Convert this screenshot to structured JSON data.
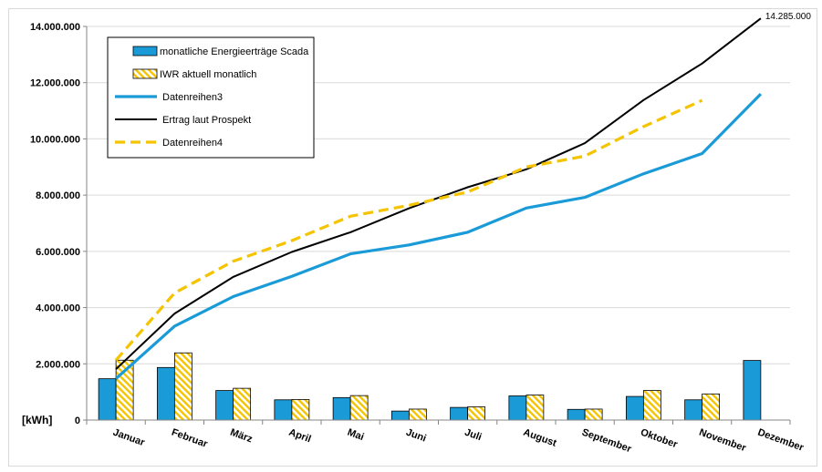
{
  "chart_data": {
    "type": "bar",
    "title": "",
    "unit_label": "[kWh]",
    "categories": [
      "Januar",
      "Februar",
      "März",
      "April",
      "Mai",
      "Juni",
      "Juli",
      "August",
      "September",
      "Oktober",
      "November",
      "Dezember"
    ],
    "ylim": [
      0,
      14000000
    ],
    "yticks": [
      0,
      2000000,
      4000000,
      6000000,
      8000000,
      10000000,
      12000000,
      14000000
    ],
    "ytick_labels": [
      "0",
      "2.000.000",
      "4.000.000",
      "6.000.000",
      "8.000.000",
      "10.000.000",
      "12.000.000",
      "14.000.000"
    ],
    "grid": true,
    "legend_position": "top-left",
    "series": [
      {
        "name": "monatliche Energieerträge Scada",
        "kind": "bar",
        "color": "#1a9bd7",
        "values": [
          1470000,
          1870000,
          1050000,
          720000,
          800000,
          320000,
          450000,
          860000,
          380000,
          840000,
          720000,
          2120000
        ]
      },
      {
        "name": "IWR aktuell monatlich",
        "kind": "bar-hatched",
        "color": "#f5c400",
        "values": [
          2130000,
          2390000,
          1130000,
          730000,
          870000,
          390000,
          470000,
          890000,
          390000,
          1050000,
          930000,
          null
        ]
      },
      {
        "name": "Datenreihen3",
        "kind": "line",
        "color": "#1a9bd7",
        "values": [
          1470000,
          3340000,
          4390000,
          5110000,
          5910000,
          6230000,
          6680000,
          7540000,
          7920000,
          8760000,
          9480000,
          11600000
        ]
      },
      {
        "name": "Ertrag laut Prospekt",
        "kind": "line",
        "color": "#000000",
        "values": [
          1810000,
          3790000,
          5090000,
          5980000,
          6680000,
          7530000,
          8280000,
          8920000,
          9850000,
          11380000,
          12680000,
          14285000
        ]
      },
      {
        "name": "Datenreihen4",
        "kind": "dashed-line",
        "color": "#f5c400",
        "values": [
          2130000,
          4520000,
          5650000,
          6380000,
          7250000,
          7640000,
          8110000,
          9000000,
          9390000,
          10440000,
          11370000,
          null
        ]
      }
    ],
    "annotations": [
      {
        "text": "14.285.000",
        "series": "Ertrag laut Prospekt",
        "category": "Dezember"
      }
    ]
  }
}
